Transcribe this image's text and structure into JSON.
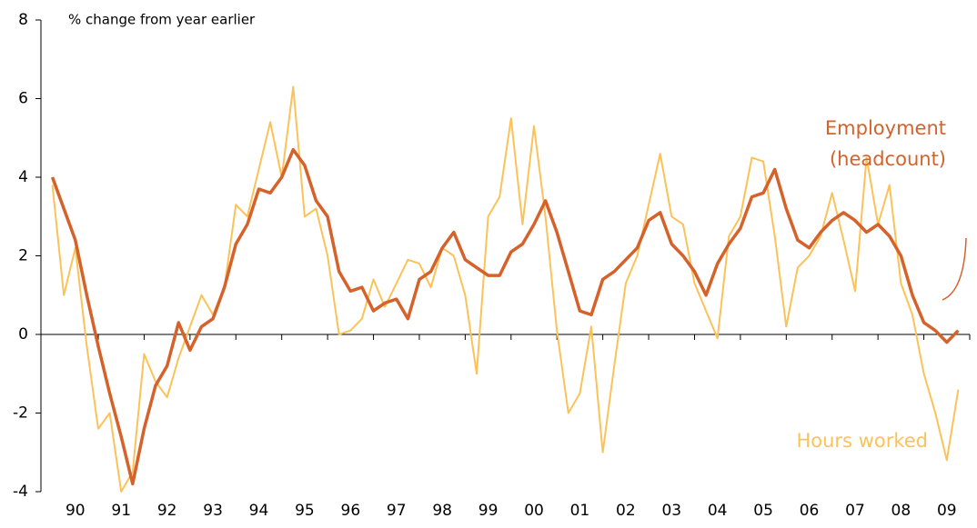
{
  "chart_data": {
    "type": "line",
    "y_label": "% change from year earlier",
    "annotations": [
      "Employment",
      "(headcount)",
      "Hours worked"
    ],
    "x": [
      1990,
      1990.25,
      1990.5,
      1990.75,
      1991,
      1991.25,
      1991.5,
      1991.75,
      1992,
      1992.25,
      1992.5,
      1992.75,
      1993,
      1993.25,
      1993.5,
      1993.75,
      1994,
      1994.25,
      1994.5,
      1994.75,
      1995,
      1995.25,
      1995.5,
      1995.75,
      1996,
      1996.25,
      1996.5,
      1996.75,
      1997,
      1997.25,
      1997.5,
      1997.75,
      1998,
      1998.25,
      1998.5,
      1998.75,
      1999,
      1999.25,
      1999.5,
      1999.75,
      2000,
      2000.25,
      2000.5,
      2000.75,
      2001,
      2001.25,
      2001.5,
      2001.75,
      2002,
      2002.25,
      2002.5,
      2002.75,
      2003,
      2003.25,
      2003.5,
      2003.75,
      2004,
      2004.25,
      2004.5,
      2004.75,
      2005,
      2005.25,
      2005.5,
      2005.75,
      2006,
      2006.25,
      2006.5,
      2006.75,
      2007,
      2007.25,
      2007.5,
      2007.75,
      2008,
      2008.25,
      2008.5,
      2008.75,
      2009,
      2009.25,
      2009.5,
      2009.75
    ],
    "series": [
      {
        "name": "Hours worked",
        "color": "#fbc25a",
        "width": 2,
        "values": [
          3.8,
          1.0,
          2.2,
          -0.3,
          -2.4,
          -2.0,
          -4.0,
          -3.5,
          -0.5,
          -1.2,
          -1.6,
          -0.6,
          0.2,
          1.0,
          0.5,
          1.2,
          3.3,
          3.0,
          4.2,
          5.4,
          4.0,
          6.3,
          3.0,
          3.2,
          2.0,
          0.0,
          0.1,
          0.4,
          1.4,
          0.7,
          1.3,
          1.9,
          1.8,
          1.2,
          2.2,
          2.0,
          1.0,
          -1.0,
          3.0,
          3.5,
          5.5,
          2.8,
          5.3,
          3.0,
          0.1,
          -2.0,
          -1.5,
          0.2,
          -3.0,
          -0.8,
          1.3,
          2.0,
          3.3,
          4.6,
          3.0,
          2.8,
          1.3,
          0.6,
          -0.1,
          2.5,
          3.0,
          4.5,
          4.4,
          2.5,
          0.2,
          1.7,
          2.0,
          2.5,
          3.6,
          2.4,
          1.1,
          4.5,
          2.8,
          3.8,
          1.3,
          0.5,
          -1.0,
          -2.0,
          -3.2,
          -1.4
        ]
      },
      {
        "name": "Employment (headcount)",
        "color": "#d4622a",
        "width": 3.5,
        "values": [
          4.0,
          3.2,
          2.4,
          1.0,
          -0.3,
          -1.5,
          -2.6,
          -3.8,
          -2.4,
          -1.3,
          -0.8,
          0.3,
          -0.4,
          0.2,
          0.4,
          1.2,
          2.3,
          2.8,
          3.7,
          3.6,
          4.0,
          4.7,
          4.3,
          3.4,
          3.0,
          1.6,
          1.1,
          1.2,
          0.6,
          0.8,
          0.9,
          0.4,
          1.4,
          1.6,
          2.2,
          2.6,
          1.9,
          1.7,
          1.5,
          1.5,
          2.1,
          2.3,
          2.8,
          3.4,
          2.6,
          1.6,
          0.6,
          0.5,
          1.4,
          1.6,
          1.9,
          2.2,
          2.9,
          3.1,
          2.3,
          2.0,
          1.6,
          1.0,
          1.8,
          2.3,
          2.7,
          3.5,
          3.6,
          4.2,
          3.2,
          2.4,
          2.2,
          2.6,
          2.9,
          3.1,
          2.9,
          2.6,
          2.8,
          2.5,
          2.0,
          1.0,
          0.3,
          0.1,
          -0.2,
          0.1
        ]
      }
    ],
    "xlim": [
      1989.75,
      2010
    ],
    "xticks": [
      {
        "value": 1990.5,
        "label": "90"
      },
      {
        "value": 1991.5,
        "label": "91"
      },
      {
        "value": 1992.5,
        "label": "92"
      },
      {
        "value": 1993.5,
        "label": "93"
      },
      {
        "value": 1994.5,
        "label": "94"
      },
      {
        "value": 1995.5,
        "label": "95"
      },
      {
        "value": 1996.5,
        "label": "96"
      },
      {
        "value": 1997.5,
        "label": "97"
      },
      {
        "value": 1998.5,
        "label": "98"
      },
      {
        "value": 1999.5,
        "label": "99"
      },
      {
        "value": 2000.5,
        "label": "00"
      },
      {
        "value": 2001.5,
        "label": "01"
      },
      {
        "value": 2002.5,
        "label": "02"
      },
      {
        "value": 2003.5,
        "label": "03"
      },
      {
        "value": 2004.5,
        "label": "04"
      },
      {
        "value": 2005.5,
        "label": "05"
      },
      {
        "value": 2006.5,
        "label": "06"
      },
      {
        "value": 2007.5,
        "label": "07"
      },
      {
        "value": 2008.5,
        "label": "08"
      },
      {
        "value": 2009.5,
        "label": "09"
      }
    ],
    "ylim": [
      -4,
      8
    ],
    "yticks": [
      -4,
      -2,
      0,
      2,
      4,
      6,
      8
    ]
  }
}
